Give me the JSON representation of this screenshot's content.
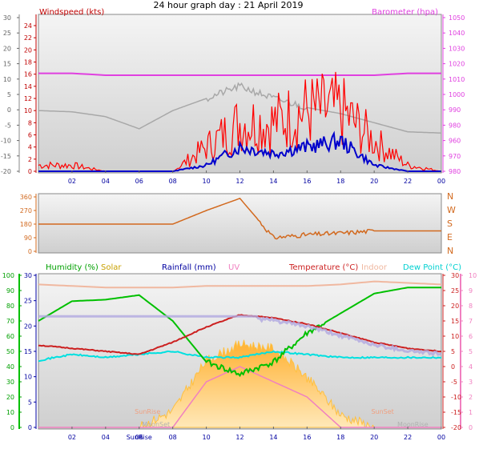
{
  "title": "24 hour graph day : 21 April 2019",
  "wind_panel": {
    "left_label": "Windspeed (kts)",
    "right_label": "Barometer (hpa)",
    "outer_ticks": [
      "-20",
      "-15",
      "-10",
      "-5",
      "0",
      "5",
      "10",
      "15",
      "20",
      "25",
      "30"
    ],
    "speed_ticks": [
      "0",
      "2",
      "4",
      "6",
      "8",
      "10",
      "12",
      "14",
      "16",
      "18",
      "20",
      "22",
      "24"
    ],
    "baro_ticks": [
      "980",
      "970",
      "960",
      "980",
      "990",
      "1000",
      "1010",
      "1020",
      "1030",
      "1040",
      "1050"
    ]
  },
  "dir_panel": {
    "left_ticks": [
      "0",
      "90",
      "180",
      "270",
      "360"
    ],
    "right_labels": [
      "N",
      "E",
      "S",
      "W",
      "N"
    ]
  },
  "th_panel": {
    "labels": {
      "humidity": "Humidity (%)",
      "solar": "Solar",
      "rainfall": "Rainfall (mm)",
      "uv": "UV",
      "temperature": "Temperature (°C)",
      "indoor": "Indoor",
      "dewpoint": "Dew Point (°C)"
    },
    "humidity_ticks": [
      "0",
      "10",
      "20",
      "30",
      "40",
      "50",
      "60",
      "70",
      "80",
      "90",
      "100"
    ],
    "rain_ticks": [
      "0",
      "5",
      "10",
      "15",
      "20",
      "25",
      "30"
    ],
    "temp_ticks": [
      "-20",
      "-15",
      "-10",
      "-5",
      "0",
      "5",
      "10",
      "15",
      "20",
      "25",
      "30"
    ],
    "uv_ticks": [
      "0",
      "1",
      "2",
      "3",
      "4",
      "5",
      "6",
      "7",
      "8",
      "9",
      "10"
    ],
    "markers": [
      "SunRise",
      "SunSet",
      "MoonRise",
      "MoonSet",
      "SunRise"
    ]
  },
  "x_ticks": [
    "02",
    "04",
    "06",
    "08",
    "10",
    "12",
    "14",
    "16",
    "18",
    "20",
    "22",
    "00"
  ],
  "colors": {
    "wind": "#ff0000",
    "avg_wind": "#0000cc",
    "barometer": "#e040e0",
    "direction": "#d2691e",
    "humidity": "#00c000",
    "temperature": "#cc2020",
    "dewpoint": "#00e0e0",
    "uv": "#f080c0",
    "solar": "#ffc040",
    "indoor": "#f0b8a0",
    "rain_axis": "#0000a0"
  },
  "chart_data": [
    {
      "type": "line",
      "title": "24 hour graph day : 21 April 2019",
      "x": [
        "00",
        "02",
        "04",
        "06",
        "08",
        "10",
        "12",
        "14",
        "16",
        "18",
        "20",
        "22",
        "00"
      ],
      "ylim": [
        0,
        25
      ],
      "series": [
        {
          "name": "Windspeed (kts)",
          "values": [
            1,
            1,
            0,
            0,
            0,
            4,
            8,
            8,
            10,
            10,
            5,
            1,
            0
          ]
        },
        {
          "name": "",
          "values": [
            0,
            0,
            0,
            0,
            0,
            1,
            4,
            3,
            4,
            5,
            1,
            0,
            0
          ]
        },
        {
          "name": "Barometer (hpa)",
          "values": [
            1021,
            1021,
            1020,
            1020,
            1020,
            1020,
            1020,
            1020,
            1020,
            1020,
            1020,
            1021,
            1021
          ]
        }
      ]
    },
    {
      "type": "line",
      "x": [
        "00",
        "02",
        "04",
        "06",
        "08",
        "10",
        "12",
        "14",
        "16",
        "18",
        "20",
        "22",
        "00"
      ],
      "ylim": [
        0,
        360
      ],
      "series": [
        {
          "name": "",
          "values": [
            180,
            180,
            180,
            180,
            180,
            270,
            350,
            90,
            110,
            120,
            135,
            135,
            135
          ]
        }
      ]
    },
    {
      "type": "line",
      "x": [
        "00",
        "02",
        "04",
        "06",
        "08",
        "10",
        "12",
        "14",
        "16",
        "18",
        "20",
        "22",
        "00"
      ],
      "series": [
        {
          "name": "Humidity (%)",
          "values": [
            70,
            83,
            84,
            87,
            70,
            43,
            35,
            43,
            62,
            75,
            88,
            92,
            92
          ]
        },
        {
          "name": "Temperature (°C)",
          "values": [
            7,
            6,
            5,
            4,
            8,
            13,
            17,
            16,
            14,
            11,
            8,
            6,
            5
          ]
        },
        {
          "name": "Dew Point (°C)",
          "values": [
            2,
            4,
            3,
            4,
            5,
            3,
            3,
            5,
            4,
            3,
            3,
            3,
            3
          ]
        },
        {
          "name": "UV",
          "values": [
            0,
            0,
            0,
            0,
            0,
            3,
            4,
            3,
            2,
            0,
            0,
            0,
            0
          ]
        },
        {
          "name": "Solar",
          "values": [
            0,
            0,
            0,
            0,
            20,
            80,
            100,
            95,
            60,
            15,
            0,
            0,
            0
          ]
        }
      ]
    }
  ]
}
